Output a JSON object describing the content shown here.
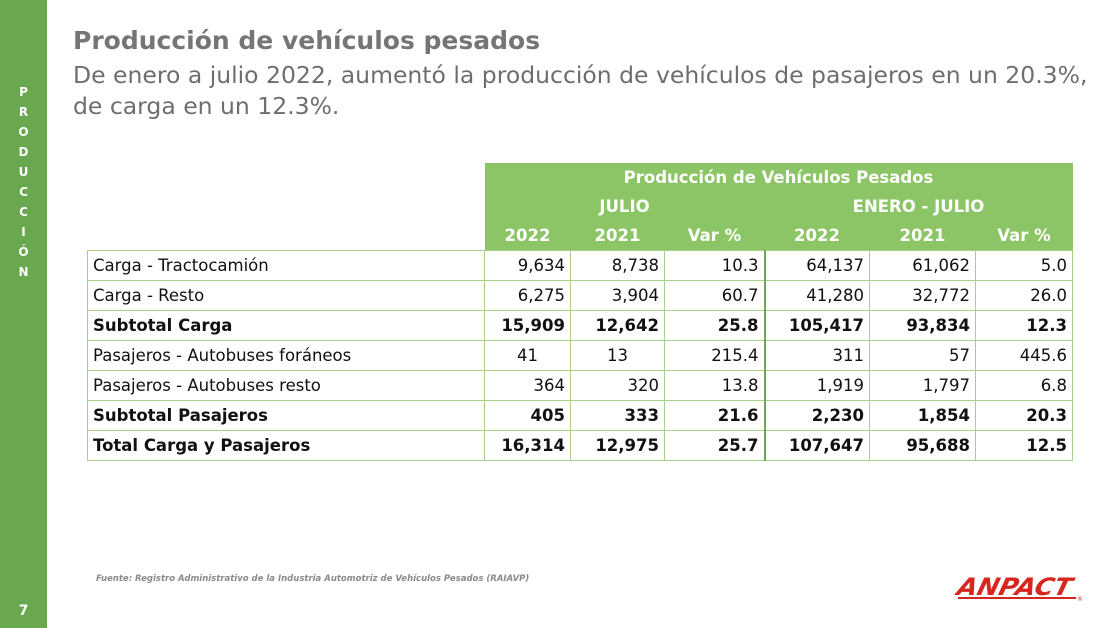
{
  "sidebar": {
    "letters": [
      "P",
      "R",
      "O",
      "D",
      "U",
      "C",
      "C",
      "I",
      "Ó",
      "N"
    ],
    "page_number": "7"
  },
  "header": {
    "title": "Producción de vehículos pesados",
    "subtitle": "De enero a julio 2022, aumentó la producción de vehículos de pasajeros en un 20.3%, de carga en un 12.3%."
  },
  "table": {
    "title": "Producción de Vehículos Pesados",
    "groups": [
      "JULIO",
      "ENERO - JULIO"
    ],
    "columns": [
      "2022",
      "2021",
      "Var %",
      "2022",
      "2021",
      "Var %"
    ],
    "rows": [
      {
        "label": "Carga - Tractocamión",
        "bold": false,
        "values": [
          "9,634",
          "8,738",
          "10.3",
          "64,137",
          "61,062",
          "5.0"
        ]
      },
      {
        "label": "Carga - Resto",
        "bold": false,
        "values": [
          "6,275",
          "3,904",
          "60.7",
          "41,280",
          "32,772",
          "26.0"
        ]
      },
      {
        "label": "Subtotal Carga",
        "bold": true,
        "values": [
          "15,909",
          "12,642",
          "25.8",
          "105,417",
          "93,834",
          "12.3"
        ]
      },
      {
        "label": "Pasajeros - Autobuses foráneos",
        "bold": false,
        "values": [
          "41",
          "13",
          "215.4",
          "311",
          "57",
          "445.6"
        ]
      },
      {
        "label": "Pasajeros - Autobuses resto",
        "bold": false,
        "values": [
          "364",
          "320",
          "13.8",
          "1,919",
          "1,797",
          "6.8"
        ]
      },
      {
        "label": "Subtotal Pasajeros",
        "bold": true,
        "values": [
          "405",
          "333",
          "21.6",
          "2,230",
          "1,854",
          "20.3"
        ]
      },
      {
        "label": "Total Carga y Pasajeros",
        "bold": true,
        "values": [
          "16,314",
          "12,975",
          "25.7",
          "107,647",
          "95,688",
          "12.5"
        ]
      }
    ]
  },
  "footer": {
    "source": "Fuente: Registro Administrativo de la Industria Automotriz de Vehículos Pesados (RAIAVP)",
    "logo_text": "ANPACT",
    "logo_mark": "®"
  },
  "colors": {
    "accent_green": "#6aa84f",
    "header_green": "#8cc565",
    "logo_red": "#d7261e"
  }
}
